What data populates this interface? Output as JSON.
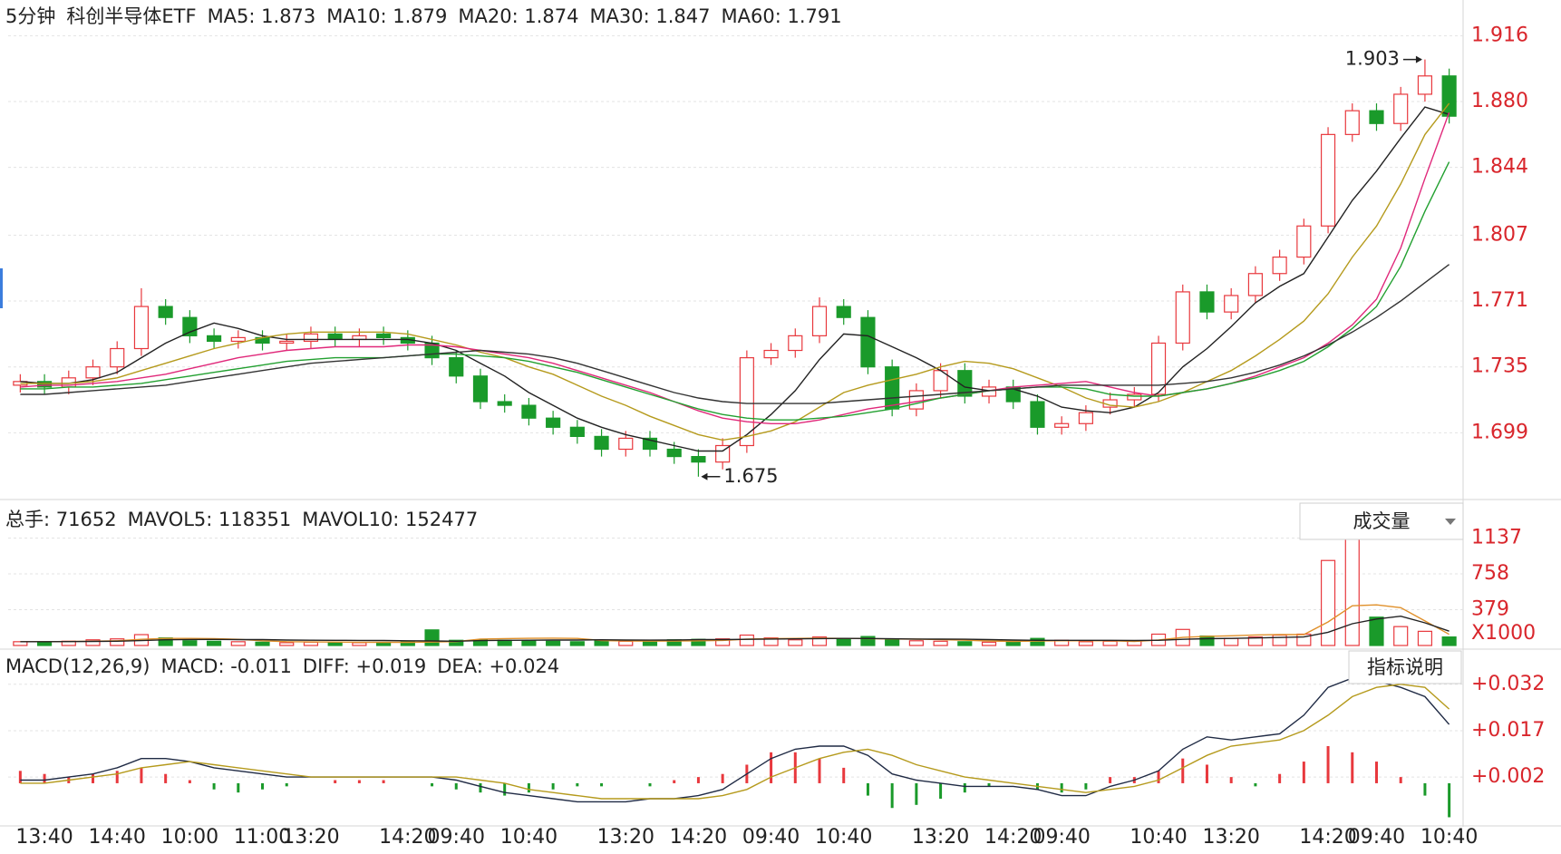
{
  "header": {
    "period": "5分钟",
    "name": "科创半导体ETF"
  },
  "chart_data": [
    {
      "type": "candlestick",
      "categories": [
        null,
        "13:40",
        null,
        null,
        "14:40",
        null,
        null,
        "10:00",
        null,
        null,
        "11:00",
        null,
        "13:20",
        null,
        null,
        null,
        "14:20",
        null,
        "09:40",
        null,
        null,
        "10:40",
        null,
        null,
        null,
        "13:20",
        null,
        null,
        "14:20",
        null,
        null,
        "09:40",
        null,
        null,
        "10:40",
        null,
        null,
        null,
        "13:20",
        null,
        null,
        "14:20",
        null,
        "09:40",
        null,
        null,
        null,
        "10:40",
        null,
        null,
        "13:20",
        null,
        null,
        null,
        "14:20",
        null,
        "09:40",
        null,
        null,
        "10:40"
      ],
      "open": [
        1.725,
        1.727,
        1.724,
        1.729,
        1.735,
        1.745,
        1.768,
        1.762,
        1.752,
        1.749,
        1.751,
        1.748,
        1.749,
        1.753,
        1.75,
        1.753,
        1.751,
        1.748,
        1.74,
        1.73,
        1.716,
        1.714,
        1.707,
        1.702,
        1.697,
        1.69,
        1.696,
        1.69,
        1.686,
        1.683,
        1.692,
        1.74,
        1.744,
        1.752,
        1.768,
        1.762,
        1.735,
        1.712,
        1.722,
        1.733,
        1.719,
        1.724,
        1.716,
        1.702,
        1.704,
        1.713,
        1.717,
        1.72,
        1.748,
        1.776,
        1.765,
        1.774,
        1.786,
        1.795,
        1.812,
        1.862,
        1.875,
        1.868,
        1.884,
        1.894
      ],
      "high": [
        1.731,
        1.731,
        1.733,
        1.739,
        1.749,
        1.778,
        1.772,
        1.766,
        1.756,
        1.755,
        1.755,
        1.753,
        1.757,
        1.757,
        1.756,
        1.757,
        1.755,
        1.752,
        1.744,
        1.734,
        1.72,
        1.718,
        1.711,
        1.706,
        1.701,
        1.7,
        1.7,
        1.694,
        1.69,
        1.696,
        1.744,
        1.748,
        1.756,
        1.773,
        1.772,
        1.766,
        1.739,
        1.726,
        1.737,
        1.737,
        1.728,
        1.728,
        1.72,
        1.708,
        1.714,
        1.721,
        1.724,
        1.752,
        1.78,
        1.78,
        1.778,
        1.79,
        1.799,
        1.816,
        1.866,
        1.879,
        1.879,
        1.888,
        1.903,
        1.898
      ],
      "low": [
        1.721,
        1.72,
        1.72,
        1.725,
        1.731,
        1.741,
        1.758,
        1.748,
        1.745,
        1.745,
        1.744,
        1.744,
        1.745,
        1.746,
        1.746,
        1.747,
        1.744,
        1.736,
        1.726,
        1.712,
        1.71,
        1.703,
        1.698,
        1.693,
        1.686,
        1.686,
        1.686,
        1.682,
        1.675,
        1.679,
        1.688,
        1.736,
        1.74,
        1.748,
        1.758,
        1.731,
        1.708,
        1.708,
        1.718,
        1.715,
        1.715,
        1.712,
        1.698,
        1.698,
        1.7,
        1.709,
        1.713,
        1.716,
        1.744,
        1.761,
        1.761,
        1.77,
        1.782,
        1.791,
        1.808,
        1.858,
        1.864,
        1.864,
        1.88,
        1.868
      ],
      "close": [
        1.727,
        1.724,
        1.729,
        1.735,
        1.745,
        1.768,
        1.762,
        1.752,
        1.749,
        1.751,
        1.748,
        1.749,
        1.753,
        1.75,
        1.752,
        1.751,
        1.748,
        1.74,
        1.73,
        1.716,
        1.714,
        1.707,
        1.702,
        1.697,
        1.69,
        1.696,
        1.69,
        1.686,
        1.683,
        1.692,
        1.74,
        1.744,
        1.752,
        1.768,
        1.762,
        1.735,
        1.712,
        1.722,
        1.733,
        1.719,
        1.724,
        1.716,
        1.702,
        1.704,
        1.71,
        1.717,
        1.72,
        1.748,
        1.776,
        1.765,
        1.774,
        1.786,
        1.795,
        1.812,
        1.862,
        1.875,
        1.868,
        1.884,
        1.894,
        1.872
      ],
      "up_color": "#e8383d",
      "down_color": "#1a9a2a",
      "ylim": [
        1.664,
        1.9355
      ],
      "yticks": [
        1.699,
        1.735,
        1.771,
        1.807,
        1.844,
        {
          "value": 1.88,
          "label": "1.880"
        },
        1.916
      ],
      "grid": true,
      "series": [
        {
          "legend": "MA5: 1.873",
          "color": "#222222",
          "values": [
            1.727,
            1.726,
            1.726,
            1.728,
            1.732,
            1.74,
            1.748,
            1.754,
            1.759,
            1.756,
            1.752,
            1.75,
            1.75,
            1.75,
            1.75,
            1.75,
            1.75,
            1.748,
            1.744,
            1.737,
            1.73,
            1.721,
            1.714,
            1.707,
            1.702,
            1.698,
            1.695,
            1.692,
            1.689,
            1.689,
            1.698,
            1.709,
            1.722,
            1.739,
            1.753,
            1.752,
            1.746,
            1.74,
            1.733,
            1.724,
            1.722,
            1.723,
            1.719,
            1.713,
            1.711,
            1.71,
            1.713,
            1.721,
            1.735,
            1.745,
            1.757,
            1.77,
            1.779,
            1.786,
            1.806,
            1.826,
            1.842,
            1.86,
            1.877,
            1.873
          ]
        },
        {
          "legend": "MA10: 1.879",
          "color": "#b59a1c",
          "values": [
            1.726,
            1.726,
            1.726,
            1.727,
            1.729,
            1.733,
            1.737,
            1.741,
            1.745,
            1.748,
            1.751,
            1.753,
            1.754,
            1.754,
            1.754,
            1.754,
            1.753,
            1.75,
            1.747,
            1.743,
            1.74,
            1.735,
            1.731,
            1.725,
            1.719,
            1.714,
            1.708,
            1.703,
            1.698,
            1.695,
            1.697,
            1.7,
            1.705,
            1.713,
            1.721,
            1.725,
            1.728,
            1.731,
            1.735,
            1.738,
            1.737,
            1.734,
            1.729,
            1.724,
            1.718,
            1.714,
            1.713,
            1.716,
            1.721,
            1.727,
            1.733,
            1.741,
            1.75,
            1.76,
            1.775,
            1.795,
            1.812,
            1.835,
            1.862,
            1.879
          ]
        },
        {
          "legend": "MA20: 1.874",
          "color": "#e0287a",
          "values": [
            1.724,
            1.725,
            1.725,
            1.726,
            1.727,
            1.729,
            1.731,
            1.734,
            1.737,
            1.74,
            1.742,
            1.744,
            1.745,
            1.746,
            1.746,
            1.746,
            1.747,
            1.747,
            1.746,
            1.744,
            1.742,
            1.74,
            1.737,
            1.733,
            1.729,
            1.725,
            1.721,
            1.716,
            1.711,
            1.707,
            1.705,
            1.704,
            1.704,
            1.706,
            1.709,
            1.712,
            1.714,
            1.716,
            1.718,
            1.72,
            1.722,
            1.724,
            1.725,
            1.726,
            1.727,
            1.724,
            1.721,
            1.719,
            1.721,
            1.723,
            1.726,
            1.73,
            1.735,
            1.74,
            1.748,
            1.758,
            1.772,
            1.8,
            1.838,
            1.874
          ]
        },
        {
          "legend": "MA30: 1.847",
          "color": "#22a030",
          "values": [
            1.723,
            1.723,
            1.724,
            1.724,
            1.725,
            1.726,
            1.728,
            1.73,
            1.732,
            1.734,
            1.736,
            1.738,
            1.739,
            1.74,
            1.74,
            1.74,
            1.741,
            1.742,
            1.742,
            1.741,
            1.74,
            1.738,
            1.735,
            1.732,
            1.728,
            1.724,
            1.72,
            1.716,
            1.712,
            1.709,
            1.707,
            1.706,
            1.706,
            1.707,
            1.708,
            1.71,
            1.712,
            1.715,
            1.718,
            1.72,
            1.722,
            1.723,
            1.724,
            1.724,
            1.723,
            1.72,
            1.719,
            1.719,
            1.721,
            1.723,
            1.726,
            1.729,
            1.733,
            1.738,
            1.746,
            1.756,
            1.768,
            1.79,
            1.82,
            1.847
          ]
        },
        {
          "legend": "MA60: 1.791",
          "color": "#333333",
          "values": [
            1.72,
            1.72,
            1.721,
            1.722,
            1.723,
            1.724,
            1.725,
            1.727,
            1.729,
            1.731,
            1.733,
            1.735,
            1.737,
            1.738,
            1.739,
            1.74,
            1.741,
            1.742,
            1.743,
            1.744,
            1.743,
            1.742,
            1.74,
            1.737,
            1.733,
            1.729,
            1.725,
            1.721,
            1.718,
            1.716,
            1.715,
            1.715,
            1.715,
            1.715,
            1.716,
            1.717,
            1.718,
            1.719,
            1.72,
            1.721,
            1.722,
            1.723,
            1.724,
            1.725,
            1.725,
            1.725,
            1.725,
            1.725,
            1.726,
            1.727,
            1.729,
            1.732,
            1.736,
            1.741,
            1.747,
            1.754,
            1.762,
            1.771,
            1.781,
            1.791
          ]
        }
      ]
    },
    {
      "type": "volume",
      "legend": {
        "text": "总手: 71652",
        "color": "#1a9a2a"
      },
      "values": [
        40,
        35,
        45,
        60,
        70,
        115,
        80,
        50,
        45,
        40,
        35,
        30,
        35,
        35,
        30,
        30,
        40,
        165,
        55,
        60,
        55,
        50,
        45,
        40,
        50,
        45,
        55,
        60,
        65,
        70,
        110,
        80,
        60,
        90,
        70,
        95,
        70,
        50,
        45,
        40,
        35,
        45,
        75,
        55,
        40,
        45,
        50,
        120,
        170,
        100,
        75,
        90,
        110,
        120,
        900,
        1150,
        300,
        200,
        150,
        90
      ],
      "ylim": [
        0,
        1526
      ],
      "yticks": [
        379,
        758,
        1137
      ],
      "unit": "X1000",
      "selector": "成交量",
      "grid": true,
      "series": [
        {
          "legend": "MAVOL5: 118351",
          "color": "#e0902a",
          "values": [
            40,
            40,
            42,
            45,
            50,
            65,
            75,
            75,
            72,
            65,
            50,
            40,
            37,
            36,
            35,
            34,
            34,
            36,
            41,
            67,
            73,
            76,
            78,
            75,
            53,
            48,
            46,
            47,
            50,
            54,
            67,
            73,
            75,
            77,
            75,
            73,
            69,
            67,
            62,
            56,
            48,
            43,
            47,
            50,
            50,
            50,
            43,
            58,
            85,
            97,
            103,
            111,
            115,
            115,
            250,
            420,
            430,
            400,
            260,
            118
          ]
        },
        {
          "legend": "MAVOL10: 152477",
          "color": "#222222",
          "values": [
            40,
            40,
            41,
            43,
            45,
            52,
            60,
            63,
            64,
            62,
            62,
            58,
            56,
            55,
            54,
            53,
            50,
            48,
            45,
            52,
            55,
            56,
            58,
            58,
            60,
            58,
            57,
            58,
            62,
            62,
            65,
            68,
            70,
            73,
            75,
            74,
            71,
            68,
            67,
            66,
            62,
            58,
            55,
            55,
            55,
            55,
            53,
            55,
            65,
            72,
            75,
            80,
            84,
            90,
            140,
            230,
            280,
            310,
            240,
            152
          ]
        }
      ]
    },
    {
      "type": "macd",
      "title": "MACD(12,26,9)",
      "legend": {
        "text": "MACD: -0.011",
        "color": "#1a9a2a"
      },
      "values": [
        0.004,
        0.003,
        0.002,
        0.003,
        0.004,
        0.005,
        0.003,
        0.001,
        -0.002,
        -0.003,
        -0.002,
        -0.001,
        0,
        0.001,
        0.001,
        0.001,
        0,
        -0.001,
        -0.002,
        -0.003,
        -0.004,
        -0.003,
        -0.002,
        -0.001,
        -0.001,
        0,
        -0.001,
        0.001,
        0.002,
        0.003,
        0.006,
        0.01,
        0.01,
        0.008,
        0.005,
        -0.004,
        -0.008,
        -0.007,
        -0.005,
        -0.003,
        -0.001,
        0,
        -0.002,
        -0.003,
        -0.002,
        0.002,
        0.002,
        0.004,
        0.008,
        0.006,
        0.002,
        -0.001,
        0.003,
        0.007,
        0.012,
        0.01,
        0.007,
        0.002,
        -0.004,
        -0.011
      ],
      "up_color": "#e8383d",
      "down_color": "#1a9a2a",
      "ylim": [
        -0.0135,
        0.0419
      ],
      "yticks": [
        {
          "value": 0.002,
          "label": "+0.002"
        },
        {
          "value": 0.017,
          "label": "+0.017"
        },
        {
          "value": 0.032,
          "label": "+0.032"
        }
      ],
      "button": "指标说明",
      "grid": true,
      "series": [
        {
          "legend": "DIFF: +0.019",
          "color": "#1f2a44",
          "values": [
            0.001,
            0.001,
            0.002,
            0.003,
            0.005,
            0.008,
            0.008,
            0.007,
            0.005,
            0.004,
            0.003,
            0.002,
            0.002,
            0.002,
            0.002,
            0.002,
            0.002,
            0.002,
            0.001,
            -0.001,
            -0.003,
            -0.004,
            -0.005,
            -0.006,
            -0.006,
            -0.006,
            -0.005,
            -0.005,
            -0.004,
            -0.002,
            0.003,
            0.008,
            0.011,
            0.012,
            0.012,
            0.009,
            0.003,
            0.001,
            0,
            -0.001,
            -0.001,
            -0.001,
            -0.002,
            -0.004,
            -0.004,
            -0.001,
            0.001,
            0.004,
            0.011,
            0.015,
            0.014,
            0.015,
            0.016,
            0.022,
            0.031,
            0.034,
            0.033,
            0.031,
            0.028,
            0.019
          ]
        },
        {
          "legend": "DEA: +0.024",
          "color": "#b59a1c",
          "values": [
            0,
            0,
            0.001,
            0.002,
            0.003,
            0.005,
            0.006,
            0.007,
            0.006,
            0.005,
            0.004,
            0.003,
            0.002,
            0.002,
            0.002,
            0.002,
            0.002,
            0.002,
            0.002,
            0.001,
            0,
            -0.002,
            -0.003,
            -0.004,
            -0.005,
            -0.005,
            -0.005,
            -0.005,
            -0.005,
            -0.004,
            -0.002,
            0.002,
            0.005,
            0.008,
            0.01,
            0.011,
            0.009,
            0.006,
            0.004,
            0.002,
            0.001,
            0,
            -0.001,
            -0.002,
            -0.003,
            -0.002,
            -0.001,
            0.001,
            0.005,
            0.009,
            0.012,
            0.013,
            0.014,
            0.017,
            0.022,
            0.028,
            0.031,
            0.032,
            0.031,
            0.024
          ]
        }
      ]
    }
  ]
}
